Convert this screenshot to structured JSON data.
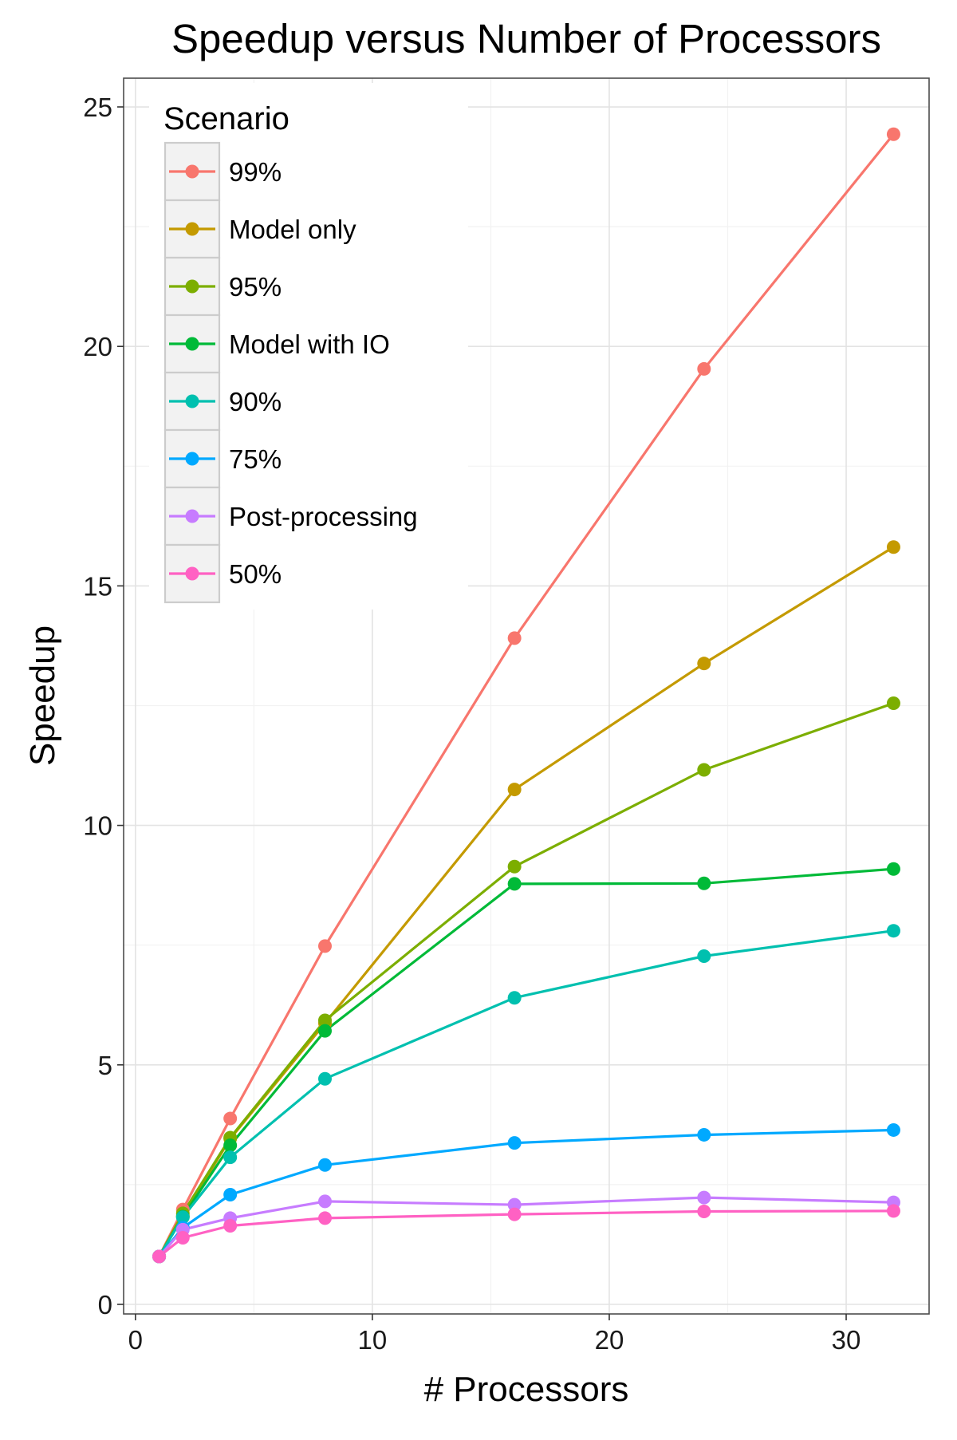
{
  "chart_data": {
    "type": "line",
    "title": "Speedup versus Number of Processors",
    "xlabel": "# Processors",
    "ylabel": "Speedup",
    "xlim": [
      -0.5,
      33.5
    ],
    "ylim": [
      -0.2,
      25.6
    ],
    "x_ticks": [
      0,
      10,
      20,
      30
    ],
    "y_ticks": [
      0,
      5,
      10,
      15,
      20,
      25
    ],
    "x_minor_ticks": [
      5,
      15,
      25
    ],
    "y_minor_ticks": [
      2.5,
      7.5,
      12.5,
      17.5,
      22.5
    ],
    "grid": true,
    "legend": {
      "title": "Scenario",
      "position": "top-left"
    },
    "x": [
      1,
      2,
      4,
      8,
      16,
      24,
      32
    ],
    "series": [
      {
        "name": "99%",
        "color": "#F8766D",
        "values": [
          1.0,
          1.98,
          3.88,
          7.48,
          13.91,
          19.53,
          24.43
        ]
      },
      {
        "name": "Model only",
        "color": "#C49A00",
        "values": [
          1.0,
          1.85,
          3.46,
          5.87,
          10.75,
          13.38,
          15.81
        ]
      },
      {
        "name": "95%",
        "color": "#7CAE00",
        "values": [
          1.0,
          1.9,
          3.48,
          5.93,
          9.14,
          11.16,
          12.55
        ]
      },
      {
        "name": "Model with IO",
        "color": "#00BA38",
        "values": [
          1.0,
          1.83,
          3.32,
          5.71,
          8.78,
          8.79,
          9.09
        ]
      },
      {
        "name": "90%",
        "color": "#00C0AF",
        "values": [
          1.0,
          1.82,
          3.07,
          4.71,
          6.4,
          7.27,
          7.8
        ]
      },
      {
        "name": "75%",
        "color": "#00A9FF",
        "values": [
          1.0,
          1.6,
          2.29,
          2.91,
          3.37,
          3.54,
          3.64
        ]
      },
      {
        "name": "Post-processing",
        "color": "#C77CFF",
        "values": [
          1.0,
          1.56,
          1.8,
          2.15,
          2.08,
          2.23,
          2.13
        ]
      },
      {
        "name": "50%",
        "color": "#FF61C3",
        "values": [
          1.0,
          1.39,
          1.64,
          1.8,
          1.88,
          1.94,
          1.95
        ]
      }
    ]
  }
}
